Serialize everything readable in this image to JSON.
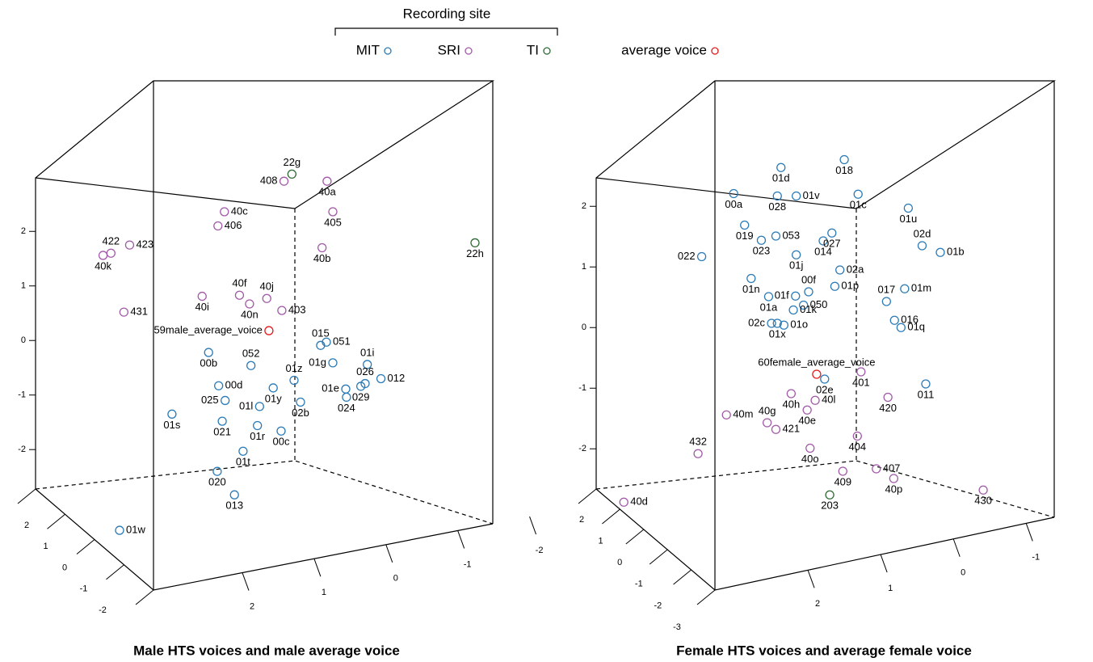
{
  "legend": {
    "title": "Recording site"
  },
  "chart_data": [
    {
      "type": "scatter3d",
      "title": "Male HTS voices and male average voice",
      "xlim": [
        4.88,
        -1.6
      ],
      "ylim": [
        -5.02,
        4.76
      ],
      "zlim": [
        2,
        -2
      ],
      "xticks": [
        2,
        1,
        0,
        -1,
        -2
      ],
      "yticks": [
        -2,
        -1,
        0,
        1,
        2
      ],
      "zticks": [
        2,
        1,
        0,
        -1,
        -2
      ],
      "series": [
        {
          "name": "MIT",
          "color": "#2c7bb6",
          "labels": [
            "015",
            "051",
            "01i",
            "01g",
            "026",
            "012",
            "01e",
            "029",
            "024",
            "01z",
            "052",
            "00b",
            "00d",
            "025",
            "01y",
            "01l",
            "02b",
            "01s",
            "021",
            "01r",
            "00c",
            "01t",
            "020",
            "013",
            "01w"
          ],
          "x": [
            0.91,
            0.83,
            0.26,
            0.74,
            0.29,
            0.07,
            0.56,
            0.35,
            0.55,
            1.28,
            1.88,
            2.47,
            2.33,
            2.24,
            1.57,
            1.76,
            1.19,
            2.98,
            2.28,
            1.79,
            1.46,
            1.99,
            2.35,
            2.11,
            3.71
          ],
          "y": [
            -0.09,
            -0.03,
            -0.44,
            -0.41,
            -0.79,
            -0.7,
            -0.89,
            -0.84,
            -1.04,
            -0.73,
            -0.46,
            -0.22,
            -0.83,
            -1.1,
            -0.87,
            -1.21,
            -1.13,
            -1.35,
            -1.48,
            -1.56,
            -1.66,
            -2.03,
            -2.4,
            -2.83,
            -3.48
          ],
          "label_side": [
            "above",
            "right",
            "above",
            "left",
            "above",
            "right",
            "left",
            "below",
            "below",
            "above",
            "above",
            "below",
            "right",
            "left",
            "below",
            "left",
            "below",
            "below",
            "below",
            "below",
            "below",
            "below",
            "below",
            "below",
            "right"
          ]
        },
        {
          "name": "SRI",
          "color": "#a25aa8",
          "labels": [
            "408",
            "40a",
            "405",
            "40c",
            "406",
            "40b",
            "422",
            "423",
            "40k",
            "40f",
            "40j",
            "40i",
            "40n",
            "403",
            "431"
          ],
          "x": [
            1.42,
            0.82,
            0.74,
            2.25,
            2.34,
            0.89,
            3.83,
            3.57,
            3.94,
            2.04,
            1.66,
            2.56,
            1.9,
            1.45,
            3.65
          ],
          "y": [
            2.92,
            2.92,
            2.36,
            2.36,
            2.1,
            1.7,
            1.6,
            1.75,
            1.56,
            0.83,
            0.77,
            0.81,
            0.67,
            0.55,
            0.52
          ],
          "label_side": [
            "left",
            "below",
            "below",
            "right",
            "right",
            "below",
            "above",
            "right",
            "below",
            "above",
            "above",
            "below",
            "below",
            "right",
            "right"
          ]
        },
        {
          "name": "TI",
          "color": "#2e6b34",
          "labels": [
            "22g",
            "22h"
          ],
          "x": [
            1.31,
            -1.24
          ],
          "y": [
            3.05,
            1.79
          ],
          "label_side": [
            "above",
            "below"
          ]
        },
        {
          "name": "average voice",
          "color": "#e41a1c",
          "labels": [
            "59male_average_voice"
          ],
          "x": [
            1.63
          ],
          "y": [
            0.18
          ],
          "label_side": [
            "left"
          ]
        }
      ]
    },
    {
      "type": "scatter3d",
      "title": "Female HTS voices and average female voice",
      "xlim": [
        5.11,
        -1.83
      ],
      "ylim": [
        -4.73,
        4.07
      ],
      "zlim": [
        2,
        -3
      ],
      "xticks": [
        2,
        1,
        0,
        -1,
        -2
      ],
      "yticks": [
        -2,
        -1,
        0,
        1,
        2
      ],
      "zticks": [
        2,
        1,
        0,
        -1,
        -2,
        -3
      ],
      "series": [
        {
          "name": "MIT",
          "color": "#2c7bb6",
          "labels": [
            "01d",
            "018",
            "00a",
            "028",
            "01v",
            "01c",
            "01u",
            "019",
            "053",
            "023",
            "014",
            "027",
            "02d",
            "01b",
            "01j",
            "022",
            "02a",
            "01n",
            "00f",
            "01p",
            "017",
            "01m",
            "01f",
            "01a",
            "050",
            "01k",
            "02c",
            "01o",
            "01x",
            "016",
            "01q",
            "02e",
            "011"
          ],
          "x": [
            2.37,
            1.5,
            3.02,
            2.42,
            2.16,
            1.31,
            0.62,
            2.87,
            2.44,
            2.64,
            1.79,
            1.67,
            0.43,
            0.18,
            2.16,
            3.46,
            1.56,
            2.78,
            1.99,
            1.63,
            0.92,
            0.67,
            2.17,
            2.54,
            2.06,
            2.2,
            2.5,
            2.33,
            2.42,
            0.81,
            0.72,
            1.77,
            0.38
          ],
          "y": [
            2.64,
            2.77,
            2.21,
            2.17,
            2.17,
            2.2,
            1.97,
            1.69,
            1.51,
            1.44,
            1.43,
            1.56,
            1.35,
            1.24,
            1.2,
            1.17,
            0.95,
            0.81,
            0.59,
            0.68,
            0.43,
            0.64,
            0.52,
            0.51,
            0.37,
            0.29,
            0.07,
            0.04,
            0.07,
            0.12,
            0,
            -0.85,
            -0.93
          ],
          "label_side": [
            "below",
            "below",
            "below",
            "below",
            "right",
            "below",
            "below",
            "below",
            "right",
            "below",
            "below",
            "below",
            "above",
            "right",
            "below",
            "left",
            "right",
            "below",
            "above",
            "right",
            "above",
            "right",
            "left",
            "below",
            "right",
            "right",
            "left",
            "right",
            "below",
            "right",
            "right",
            "below",
            "below"
          ]
        },
        {
          "name": "SRI",
          "color": "#a25aa8",
          "labels": [
            "401",
            "420",
            "40h",
            "40l",
            "40e",
            "40m",
            "40g",
            "421",
            "432",
            "404",
            "40o",
            "409",
            "407",
            "40p",
            "430",
            "40d"
          ],
          "x": [
            1.27,
            0.9,
            2.23,
            1.9,
            2.01,
            3.12,
            2.56,
            2.44,
            3.51,
            1.32,
            1.97,
            1.52,
            1.06,
            0.82,
            -0.41,
            4.53
          ],
          "y": [
            -0.73,
            -1.15,
            -1.09,
            -1.2,
            -1.36,
            -1.44,
            -1.57,
            -1.68,
            -2.08,
            -1.79,
            -1.99,
            -2.37,
            -2.33,
            -2.49,
            -2.68,
            -2.88
          ],
          "label_side": [
            "below",
            "below",
            "below",
            "right",
            "below",
            "right",
            "above",
            "right",
            "above",
            "below",
            "below",
            "below",
            "right",
            "below",
            "below",
            "right"
          ]
        },
        {
          "name": "TI",
          "color": "#2e6b34",
          "labels": [
            "203"
          ],
          "x": [
            1.7
          ],
          "y": [
            -2.76
          ],
          "label_side": [
            "below"
          ]
        },
        {
          "name": "average voice",
          "color": "#e41a1c",
          "labels": [
            "60female_average_voice"
          ],
          "x": [
            1.88
          ],
          "y": [
            -0.77
          ],
          "label_side": [
            "above"
          ]
        }
      ]
    }
  ]
}
